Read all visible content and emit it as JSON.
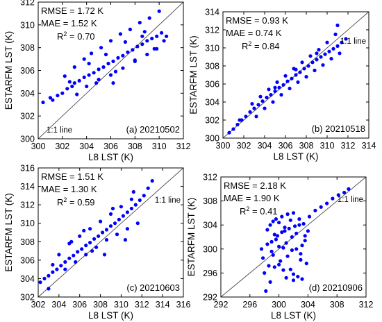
{
  "chart_data": [
    {
      "type": "scatter",
      "panel": "(a) 20210502",
      "xlabel": "L8 LST (K)",
      "ylabel": "ESTARFM LST (K)",
      "xlim": [
        300,
        312
      ],
      "ylim": [
        300,
        312
      ],
      "xticks": [
        300,
        302,
        304,
        306,
        308,
        310,
        312
      ],
      "yticks": [
        300,
        302,
        304,
        306,
        308,
        310,
        312
      ],
      "stats": {
        "rmse": "RMSE = 1.72 K",
        "mae": "MAE = 1.52 K",
        "r2_prefix": "R",
        "r2_value": " = 0.70"
      },
      "one_to_one_label": "1:1 line",
      "point_color": "#0000ff",
      "series": [
        {
          "x": [
            301.0,
            301.6,
            302.0,
            302.4,
            302.8,
            303.0,
            303.4,
            303.8,
            304.2,
            304.6,
            305.0,
            305.4,
            305.8,
            306.2,
            306.6,
            307.0,
            307.4,
            307.8,
            308.2,
            308.6,
            309.0,
            309.4,
            309.8,
            310.2,
            310.6,
            302.2,
            303.0,
            303.8,
            304.4,
            305.2,
            306.0,
            306.8,
            307.6,
            308.4,
            309.2,
            310.0,
            304.0,
            305.0,
            306.0,
            307.0,
            308.0,
            309.0,
            303.2,
            304.8,
            306.4,
            308.0,
            309.6,
            310.4,
            300.4,
            301.2,
            305.6,
            307.2,
            308.8,
            306.2,
            304.2,
            302.6,
            309.8,
            308.6
          ],
          "y": [
            303.6,
            303.8,
            304.0,
            304.4,
            304.6,
            304.9,
            305.1,
            305.4,
            305.6,
            305.8,
            306.1,
            306.3,
            306.6,
            306.8,
            307.1,
            307.3,
            307.6,
            307.8,
            308.1,
            308.3,
            308.6,
            308.8,
            309.0,
            309.3,
            309.0,
            305.5,
            306.3,
            307.0,
            307.5,
            308.0,
            308.6,
            309.2,
            309.6,
            310.2,
            310.6,
            311.2,
            304.6,
            305.2,
            305.6,
            306.2,
            306.8,
            307.4,
            303.9,
            304.9,
            305.9,
            306.9,
            307.9,
            308.6,
            303.2,
            303.4,
            307.4,
            308.5,
            309.4,
            304.9,
            306.6,
            305.0,
            307.9,
            309.0
          ]
        }
      ]
    },
    {
      "type": "scatter",
      "panel": "(b) 20210518",
      "xlabel": "L8 LST (K)",
      "ylabel": "ESTARFM LST (K)",
      "xlim": [
        300,
        314
      ],
      "ylim": [
        300,
        314
      ],
      "xticks": [
        300,
        302,
        304,
        306,
        308,
        310,
        312,
        314
      ],
      "yticks": [
        300,
        302,
        304,
        306,
        308,
        310,
        312,
        314
      ],
      "stats": {
        "rmse": "RMSE = 0.93 K",
        "mae": "MAE = 0.74 K",
        "r2_prefix": "R",
        "r2_value": " = 0.84"
      },
      "one_to_one_label": "1:1 line",
      "point_color": "#0000ff",
      "series": [
        {
          "x": [
            300.6,
            301.0,
            301.4,
            301.8,
            302.2,
            302.6,
            303.0,
            303.4,
            303.8,
            304.2,
            304.6,
            305.0,
            305.4,
            305.8,
            306.2,
            306.6,
            307.0,
            307.4,
            307.8,
            308.2,
            308.6,
            309.0,
            309.4,
            309.8,
            310.2,
            310.6,
            311.0,
            311.4,
            311.8,
            302.8,
            303.6,
            304.4,
            305.2,
            306.0,
            306.8,
            307.6,
            308.4,
            309.2,
            310.0,
            310.8,
            303.2,
            304.0,
            304.8,
            305.6,
            306.4,
            307.2,
            308.0,
            308.8,
            309.6,
            310.4,
            311.2,
            301.6,
            305.0,
            307.0,
            309.0,
            311.0
          ],
          "y": [
            300.6,
            301.0,
            301.5,
            302.0,
            302.4,
            302.9,
            303.3,
            303.7,
            304.1,
            304.5,
            304.8,
            305.2,
            305.6,
            305.9,
            306.3,
            306.6,
            307.0,
            307.3,
            307.7,
            308.0,
            308.4,
            308.7,
            309.0,
            309.3,
            309.6,
            309.9,
            310.2,
            310.6,
            311.0,
            303.8,
            304.6,
            305.4,
            306.2,
            306.9,
            307.7,
            308.4,
            309.1,
            309.8,
            310.6,
            311.5,
            302.4,
            303.3,
            304.0,
            304.8,
            305.5,
            306.2,
            306.8,
            307.5,
            308.1,
            308.8,
            309.4,
            302.0,
            305.6,
            307.6,
            309.4,
            312.5
          ]
        }
      ]
    },
    {
      "type": "scatter",
      "panel": "(c) 20210603",
      "xlabel": "L8 LST (K)",
      "ylabel": "ESTARFM LST (K)",
      "xlim": [
        302,
        316
      ],
      "ylim": [
        302,
        316
      ],
      "xticks": [
        302,
        304,
        306,
        308,
        310,
        312,
        314,
        316
      ],
      "yticks": [
        302,
        304,
        306,
        308,
        310,
        312,
        314,
        316
      ],
      "stats": {
        "rmse": "RMSE = 1.51 K",
        "mae": "MAE = 1.30 K",
        "r2_prefix": "R",
        "r2_value": " = 0.59"
      },
      "one_to_one_label": "1:1 line",
      "point_color": "#0000ff",
      "series": [
        {
          "x": [
            302.2,
            302.6,
            303.0,
            303.4,
            303.8,
            304.2,
            304.6,
            305.0,
            305.4,
            305.8,
            306.2,
            306.6,
            307.0,
            307.4,
            307.8,
            308.2,
            308.6,
            309.0,
            309.4,
            309.8,
            310.2,
            310.6,
            311.0,
            311.4,
            311.8,
            312.2,
            312.6,
            313.0,
            304.0,
            305.0,
            306.0,
            307.0,
            308.0,
            309.0,
            310.0,
            311.0,
            304.6,
            305.6,
            306.6,
            307.6,
            308.6,
            309.6,
            310.6,
            311.6,
            303.4,
            305.2,
            307.2,
            309.2,
            311.2,
            306.4,
            308.4,
            310.4,
            303.0
          ],
          "y": [
            303.6,
            304.0,
            304.3,
            304.7,
            305.0,
            305.4,
            305.8,
            306.2,
            306.5,
            306.9,
            307.2,
            307.6,
            307.9,
            308.3,
            308.6,
            309.0,
            309.3,
            309.7,
            310.0,
            310.4,
            310.8,
            311.2,
            311.6,
            312.0,
            312.5,
            313.0,
            313.8,
            314.6,
            306.6,
            307.8,
            308.6,
            309.4,
            310.2,
            311.0,
            311.8,
            312.6,
            305.0,
            305.8,
            306.6,
            307.4,
            308.2,
            308.8,
            309.4,
            310.0,
            305.5,
            308.0,
            307.0,
            311.6,
            313.4,
            309.2,
            306.6,
            308.2,
            302.9
          ]
        }
      ]
    },
    {
      "type": "scatter",
      "panel": "(d) 20210906",
      "xlabel": "L8 LST (K)",
      "ylabel": "ESTARFM LST (K)",
      "xlim": [
        292,
        312
      ],
      "ylim": [
        292,
        312
      ],
      "xticks": [
        292,
        296,
        300,
        304,
        308,
        312
      ],
      "yticks": [
        292,
        296,
        300,
        304,
        308,
        312
      ],
      "stats": {
        "rmse": "RMSE = 2.18 K",
        "mae": "MAE = 1.90 K",
        "r2_prefix": "R",
        "r2_value": " = 0.41"
      },
      "one_to_one_label": "1:1 line",
      "point_color": "#0000ff",
      "series": [
        {
          "x": [
            297.6,
            297.8,
            298.0,
            298.2,
            298.4,
            298.6,
            298.8,
            299.0,
            299.2,
            299.4,
            299.6,
            299.8,
            300.0,
            300.2,
            300.4,
            300.6,
            300.8,
            301.0,
            301.2,
            301.4,
            301.6,
            301.8,
            302.0,
            302.2,
            302.4,
            302.6,
            302.8,
            303.0,
            303.2,
            303.4,
            303.6,
            303.8,
            304.0,
            298.4,
            298.8,
            299.2,
            299.6,
            300.0,
            300.4,
            300.8,
            301.2,
            301.6,
            302.0,
            302.4,
            302.8,
            303.2,
            303.6,
            304.2,
            305.0,
            305.8,
            306.6,
            307.4,
            308.2,
            309.0,
            309.6,
            299.0,
            300.0,
            301.0,
            302.0,
            303.0,
            299.4,
            300.6,
            301.8
          ],
          "y": [
            300.0,
            298.5,
            296.0,
            293.0,
            300.8,
            297.2,
            294.5,
            301.2,
            299.0,
            297.0,
            301.6,
            302.2,
            300.4,
            298.0,
            302.8,
            296.5,
            303.0,
            301.0,
            298.8,
            303.4,
            296.6,
            302.0,
            295.8,
            303.8,
            300.0,
            295.4,
            304.0,
            299.2,
            295.0,
            304.2,
            301.4,
            297.6,
            303.0,
            303.2,
            304.0,
            304.6,
            305.0,
            304.4,
            305.4,
            303.6,
            305.8,
            304.8,
            306.0,
            302.6,
            305.0,
            300.6,
            302.2,
            305.4,
            306.4,
            307.0,
            307.6,
            308.4,
            309.0,
            309.4,
            310.0,
            299.6,
            297.4,
            295.2,
            294.8,
            298.2,
            302.4,
            300.2,
            299.8
          ]
        }
      ]
    }
  ]
}
